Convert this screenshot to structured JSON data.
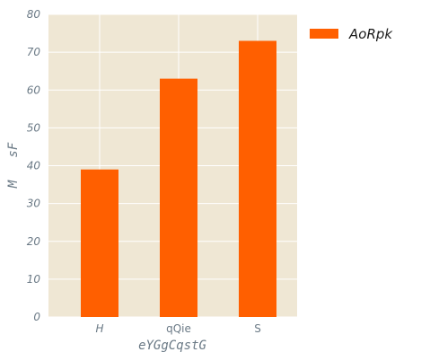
{
  "chart_data": {
    "type": "bar",
    "categories": [
      "H",
      "qQie",
      "S"
    ],
    "series": [
      {
        "name": "AoRpk",
        "values": [
          39,
          63,
          73
        ]
      }
    ],
    "xlabel": "eYGgCqstG",
    "ylabel": "M   sF",
    "ylim": [
      0,
      80
    ],
    "yticks": [
      0,
      10,
      20,
      30,
      40,
      50,
      60,
      70,
      80
    ],
    "grid": true,
    "legend": "top-right, outside plot",
    "colors": {
      "bar": "#ff5f00",
      "plot_background": "#efe7d4",
      "grid": "#ffffff",
      "tick_text": "#6b7a86"
    }
  }
}
